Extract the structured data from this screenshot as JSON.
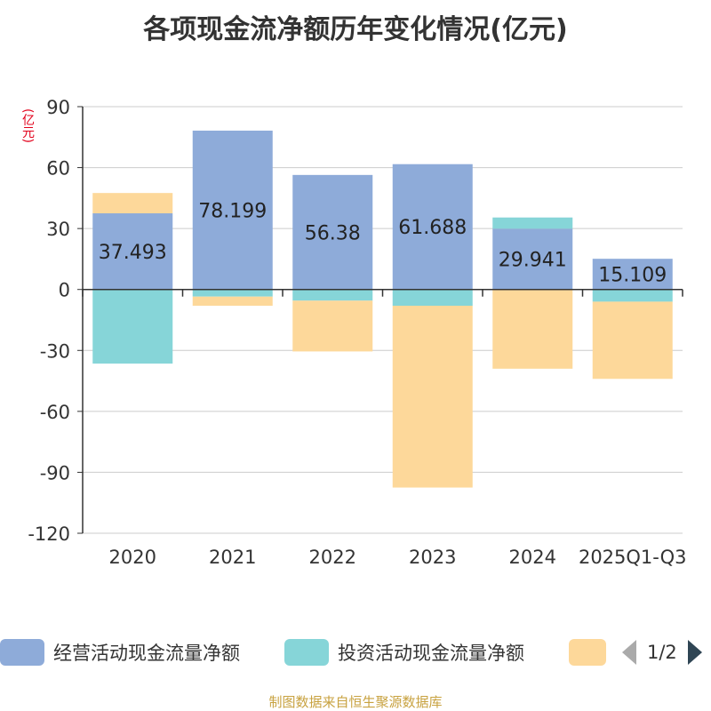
{
  "chart_data": {
    "type": "bar",
    "stacked": true,
    "title": "各项现金流净额历年变化情况(亿元)",
    "ylabel": "(亿元)",
    "ylim": [
      -120,
      90
    ],
    "yticks": [
      90,
      60,
      30,
      0,
      -30,
      -60,
      -90,
      -120
    ],
    "categories": [
      "2020",
      "2021",
      "2022",
      "2023",
      "2024",
      "2025Q1-Q3"
    ],
    "series": [
      {
        "name": "经营活动现金流量净额",
        "color": "#8eabd9",
        "values": [
          37.493,
          78.199,
          56.38,
          61.688,
          29.941,
          15.109
        ],
        "show_labels": true
      },
      {
        "name": "投资活动现金流量净额",
        "color": "#86d5d8",
        "values": [
          -36.5,
          -3.5,
          -5.5,
          -8.0,
          5.5,
          -6.0
        ],
        "show_labels": false
      },
      {
        "name": "",
        "color": "#fdd89a",
        "values": [
          10.0,
          -4.5,
          -25.0,
          -89.5,
          -39.0,
          -38.0
        ],
        "show_labels": false
      }
    ],
    "data_labels": [
      "37.493",
      "78.199",
      "56.38",
      "61.688",
      "29.941",
      "15.109"
    ],
    "legend_position": "bottom"
  },
  "legend": {
    "items": [
      {
        "label": "经营活动现金流量净额",
        "color": "#8eabd9"
      },
      {
        "label": "投资活动现金流量净额",
        "color": "#86d5d8"
      },
      {
        "label": "",
        "color": "#fdd89a"
      }
    ],
    "page_indicator": "1/2"
  },
  "footer": {
    "source": "制图数据来自恒生聚源数据库"
  }
}
